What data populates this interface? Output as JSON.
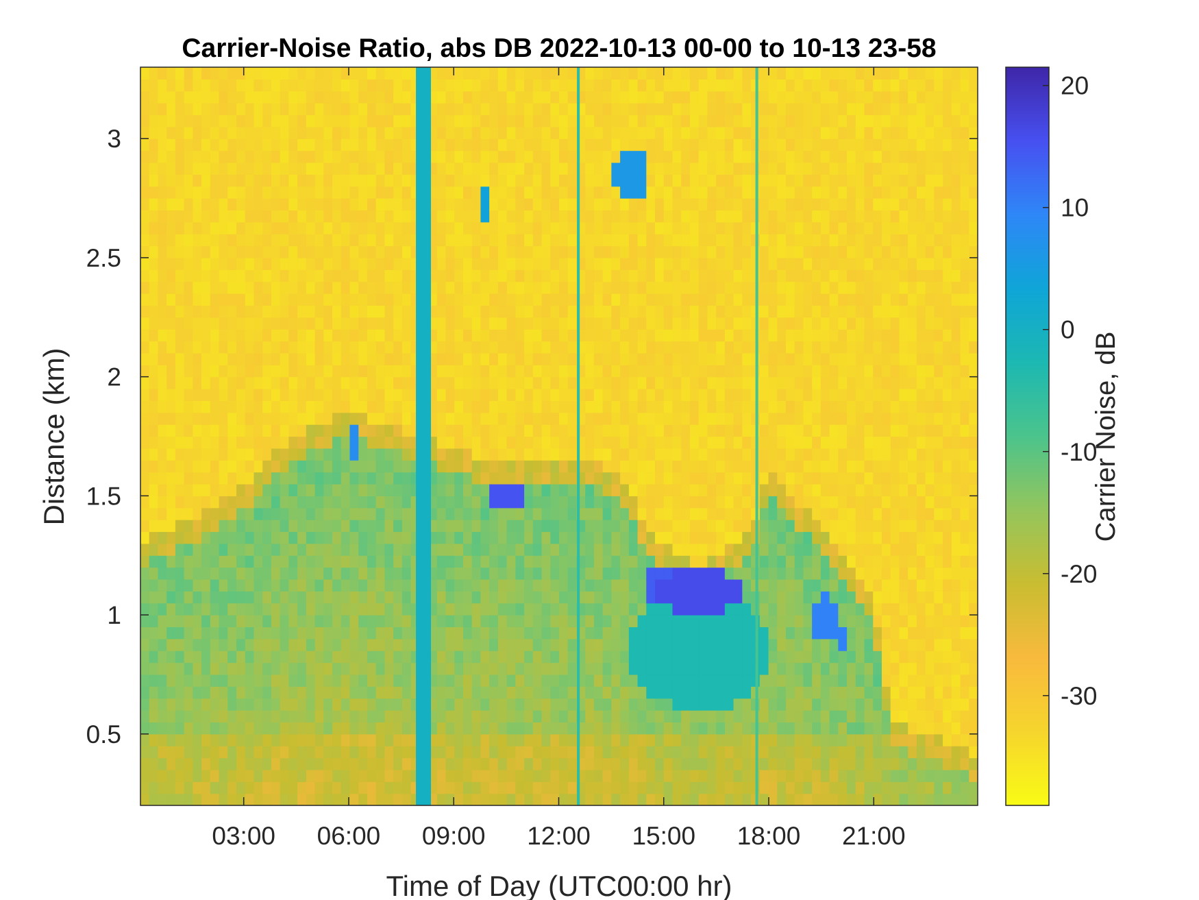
{
  "chart_data": {
    "type": "heatmap",
    "title": "Carrier-Noise Ratio, abs DB 2022-10-13 00-00 to 10-13 23-58",
    "xlabel": "Time of Day (UTC00:00 hr)",
    "ylabel": "Distance (km)",
    "xlim_hours": [
      0.05,
      23.97
    ],
    "ylim": [
      0.2,
      3.3
    ],
    "x_ticks": [
      3,
      6,
      9,
      12,
      15,
      18,
      21
    ],
    "x_tick_labels": [
      "03:00",
      "06:00",
      "09:00",
      "12:00",
      "15:00",
      "18:00",
      "21:00"
    ],
    "y_ticks": [
      0.5,
      1,
      1.5,
      2,
      2.5,
      3
    ],
    "y_tick_labels": [
      "0.5",
      "1",
      "1.5",
      "2",
      "2.5",
      "3"
    ],
    "colorbar": {
      "label": "Carrier Noise, dB",
      "colormap": "parula-reversed",
      "clim": [
        -39,
        21.5
      ],
      "ticks": [
        20,
        10,
        0,
        -10,
        -20,
        -30
      ],
      "tick_labels": [
        "20",
        "10",
        "0",
        "-10",
        "-20",
        "-30"
      ],
      "colors_top_to_bottom": [
        "#3e26a8",
        "#4750f0",
        "#2e87f7",
        "#0fa5d7",
        "#1cb8b2",
        "#4bc48c",
        "#94c55c",
        "#c9bd31",
        "#f8ba3d",
        "#f6d52d",
        "#f9fb15"
      ]
    },
    "background_noise_db": -33,
    "boundary_layer_top_km": [
      {
        "t": 0.05,
        "h": 1.25
      },
      {
        "t": 1.0,
        "h": 1.32
      },
      {
        "t": 2.0,
        "h": 1.4
      },
      {
        "t": 3.0,
        "h": 1.5
      },
      {
        "t": 4.0,
        "h": 1.65
      },
      {
        "t": 5.0,
        "h": 1.75
      },
      {
        "t": 6.0,
        "h": 1.8
      },
      {
        "t": 7.0,
        "h": 1.75
      },
      {
        "t": 8.0,
        "h": 1.7
      },
      {
        "t": 9.0,
        "h": 1.65
      },
      {
        "t": 10.0,
        "h": 1.6
      },
      {
        "t": 11.0,
        "h": 1.6
      },
      {
        "t": 12.0,
        "h": 1.58
      },
      {
        "t": 13.0,
        "h": 1.6
      },
      {
        "t": 14.0,
        "h": 1.5
      },
      {
        "t": 14.5,
        "h": 1.3
      },
      {
        "t": 16.0,
        "h": 1.15
      },
      {
        "t": 17.5,
        "h": 1.3
      },
      {
        "t": 18.0,
        "h": 1.55
      },
      {
        "t": 19.0,
        "h": 1.4
      },
      {
        "t": 20.0,
        "h": 1.2
      },
      {
        "t": 21.0,
        "h": 1.0
      },
      {
        "t": 21.5,
        "h": 0.5
      },
      {
        "t": 22.5,
        "h": 0.45
      },
      {
        "t": 23.97,
        "h": 0.35
      }
    ],
    "vertical_strips": [
      {
        "t0": 7.92,
        "t1": 8.35,
        "db": 0
      },
      {
        "t0": 12.52,
        "t1": 12.6,
        "db": -5
      },
      {
        "t0": 17.62,
        "t1": 17.7,
        "db": -8
      }
    ],
    "high_snr_patches": [
      {
        "t": 10.55,
        "h": 1.5,
        "dt": 0.55,
        "dh": 0.07,
        "db": 15
      },
      {
        "t": 16.0,
        "h": 1.1,
        "dt": 1.4,
        "dh": 0.09,
        "db": 16
      },
      {
        "t": 14.9,
        "h": 1.14,
        "dt": 0.5,
        "dh": 0.08,
        "db": 14
      },
      {
        "t": 6.1,
        "h": 1.72,
        "dt": 0.15,
        "dh": 0.07,
        "db": 8
      },
      {
        "t": 14.05,
        "h": 2.85,
        "dt": 0.45,
        "dh": 0.12,
        "db": 6
      },
      {
        "t": 9.95,
        "h": 2.73,
        "dt": 0.12,
        "dh": 0.1,
        "db": 4
      },
      {
        "t": 19.6,
        "h": 0.98,
        "dt": 0.4,
        "dh": 0.1,
        "db": 10
      },
      {
        "t": 20.2,
        "h": 0.9,
        "dt": 0.15,
        "dh": 0.08,
        "db": 10
      },
      {
        "t": 16.0,
        "h": 0.85,
        "dt": 2.0,
        "dh": 0.25,
        "db": -3
      }
    ]
  }
}
